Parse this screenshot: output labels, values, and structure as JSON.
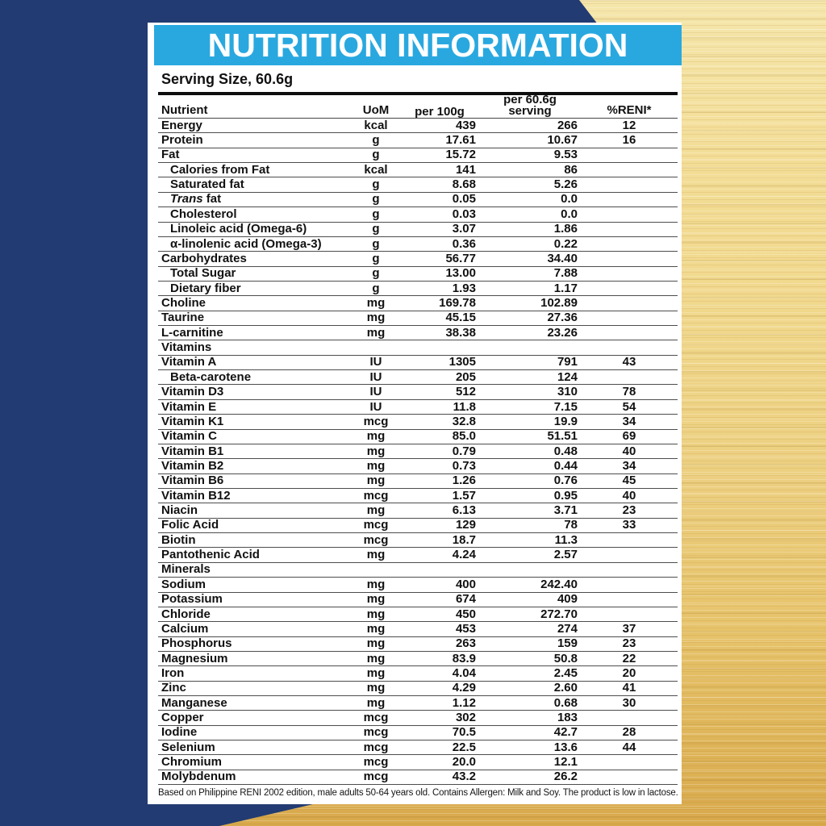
{
  "colors": {
    "title_bar_blue": "#29a8e0",
    "navy_background": "#223b72",
    "gold_light": "#f5e6ab",
    "gold_dark": "#d8a94c",
    "text": "#111111"
  },
  "header": {
    "title": "NUTRITION INFORMATION",
    "serving_size": "Serving Size, 60.6g"
  },
  "table": {
    "columns": {
      "nutrient": "Nutrient",
      "uom": "UoM",
      "per100g": "per 100g",
      "serving_line1": "per 60.6g",
      "serving_line2": "serving",
      "reni": "%RENI*"
    },
    "rows": [
      {
        "nutrient": "Energy",
        "uom": "kcal",
        "per100g": "439",
        "serving": "266",
        "reni": "12"
      },
      {
        "nutrient": "Protein",
        "uom": "g",
        "per100g": "17.61",
        "serving": "10.67",
        "reni": "16"
      },
      {
        "nutrient": "Fat",
        "uom": "g",
        "per100g": "15.72",
        "serving": "9.53",
        "reni": ""
      },
      {
        "nutrient": "Calories from Fat",
        "uom": "kcal",
        "per100g": "141",
        "serving": "86",
        "reni": "",
        "indent": true
      },
      {
        "nutrient": "Saturated fat",
        "uom": "g",
        "per100g": "8.68",
        "serving": "5.26",
        "reni": "",
        "indent": true
      },
      {
        "nutrient": "Trans fat",
        "uom": "g",
        "per100g": "0.05",
        "serving": "0.0",
        "reni": "",
        "indent": true,
        "italic_first_word": true
      },
      {
        "nutrient": "Cholesterol",
        "uom": "g",
        "per100g": "0.03",
        "serving": "0.0",
        "reni": "",
        "indent": true
      },
      {
        "nutrient": "Linoleic acid (Omega-6)",
        "uom": "g",
        "per100g": "3.07",
        "serving": "1.86",
        "reni": "",
        "indent": true
      },
      {
        "nutrient": "α-linolenic acid (Omega-3)",
        "uom": "g",
        "per100g": "0.36",
        "serving": "0.22",
        "reni": "",
        "indent": true
      },
      {
        "nutrient": "Carbohydrates",
        "uom": "g",
        "per100g": "56.77",
        "serving": "34.40",
        "reni": ""
      },
      {
        "nutrient": "Total Sugar",
        "uom": "g",
        "per100g": "13.00",
        "serving": "7.88",
        "reni": "",
        "indent": true
      },
      {
        "nutrient": "Dietary fiber",
        "uom": "g",
        "per100g": "1.93",
        "serving": "1.17",
        "reni": "",
        "indent": true
      },
      {
        "nutrient": "Choline",
        "uom": "mg",
        "per100g": "169.78",
        "serving": "102.89",
        "reni": ""
      },
      {
        "nutrient": "Taurine",
        "uom": "mg",
        "per100g": "45.15",
        "serving": "27.36",
        "reni": ""
      },
      {
        "nutrient": "L-carnitine",
        "uom": "mg",
        "per100g": "38.38",
        "serving": "23.26",
        "reni": ""
      },
      {
        "nutrient": "Vitamins",
        "section": true
      },
      {
        "nutrient": "Vitamin A",
        "uom": "IU",
        "per100g": "1305",
        "serving": "791",
        "reni": "43"
      },
      {
        "nutrient": "Beta-carotene",
        "uom": "IU",
        "per100g": "205",
        "serving": "124",
        "reni": "",
        "indent": true
      },
      {
        "nutrient": "Vitamin D3",
        "uom": "IU",
        "per100g": "512",
        "serving": "310",
        "reni": "78"
      },
      {
        "nutrient": "Vitamin E",
        "uom": "IU",
        "per100g": "11.8",
        "serving": "7.15",
        "reni": "54"
      },
      {
        "nutrient": "Vitamin K1",
        "uom": "mcg",
        "per100g": "32.8",
        "serving": "19.9",
        "reni": "34"
      },
      {
        "nutrient": "Vitamin C",
        "uom": "mg",
        "per100g": "85.0",
        "serving": "51.51",
        "reni": "69"
      },
      {
        "nutrient": "Vitamin B1",
        "uom": "mg",
        "per100g": "0.79",
        "serving": "0.48",
        "reni": "40"
      },
      {
        "nutrient": "Vitamin B2",
        "uom": "mg",
        "per100g": "0.73",
        "serving": "0.44",
        "reni": "34"
      },
      {
        "nutrient": "Vitamin B6",
        "uom": "mg",
        "per100g": "1.26",
        "serving": "0.76",
        "reni": "45"
      },
      {
        "nutrient": "Vitamin B12",
        "uom": "mcg",
        "per100g": "1.57",
        "serving": "0.95",
        "reni": "40"
      },
      {
        "nutrient": "Niacin",
        "uom": "mg",
        "per100g": "6.13",
        "serving": "3.71",
        "reni": "23"
      },
      {
        "nutrient": "Folic Acid",
        "uom": "mcg",
        "per100g": "129",
        "serving": "78",
        "reni": "33"
      },
      {
        "nutrient": "Biotin",
        "uom": "mcg",
        "per100g": "18.7",
        "serving": "11.3",
        "reni": ""
      },
      {
        "nutrient": "Pantothenic Acid",
        "uom": "mg",
        "per100g": "4.24",
        "serving": "2.57",
        "reni": ""
      },
      {
        "nutrient": "Minerals",
        "section": true
      },
      {
        "nutrient": "Sodium",
        "uom": "mg",
        "per100g": "400",
        "serving": "242.40",
        "reni": ""
      },
      {
        "nutrient": "Potassium",
        "uom": "mg",
        "per100g": "674",
        "serving": "409",
        "reni": ""
      },
      {
        "nutrient": "Chloride",
        "uom": "mg",
        "per100g": "450",
        "serving": "272.70",
        "reni": ""
      },
      {
        "nutrient": "Calcium",
        "uom": "mg",
        "per100g": "453",
        "serving": "274",
        "reni": "37"
      },
      {
        "nutrient": "Phosphorus",
        "uom": "mg",
        "per100g": "263",
        "serving": "159",
        "reni": "23"
      },
      {
        "nutrient": "Magnesium",
        "uom": "mg",
        "per100g": "83.9",
        "serving": "50.8",
        "reni": "22"
      },
      {
        "nutrient": "Iron",
        "uom": "mg",
        "per100g": "4.04",
        "serving": "2.45",
        "reni": "20"
      },
      {
        "nutrient": "Zinc",
        "uom": "mg",
        "per100g": "4.29",
        "serving": "2.60",
        "reni": "41"
      },
      {
        "nutrient": "Manganese",
        "uom": "mg",
        "per100g": "1.12",
        "serving": "0.68",
        "reni": "30"
      },
      {
        "nutrient": "Copper",
        "uom": "mcg",
        "per100g": "302",
        "serving": "183",
        "reni": ""
      },
      {
        "nutrient": "Iodine",
        "uom": "mcg",
        "per100g": "70.5",
        "serving": "42.7",
        "reni": "28"
      },
      {
        "nutrient": "Selenium",
        "uom": "mcg",
        "per100g": "22.5",
        "serving": "13.6",
        "reni": "44"
      },
      {
        "nutrient": "Chromium",
        "uom": "mcg",
        "per100g": "20.0",
        "serving": "12.1",
        "reni": ""
      },
      {
        "nutrient": "Molybdenum",
        "uom": "mcg",
        "per100g": "43.2",
        "serving": "26.2",
        "reni": ""
      }
    ]
  },
  "footnote": "Based on Philippine RENI 2002 edition, male adults 50-64 years old. Contains Allergen: Milk and Soy. The product is low in lactose."
}
